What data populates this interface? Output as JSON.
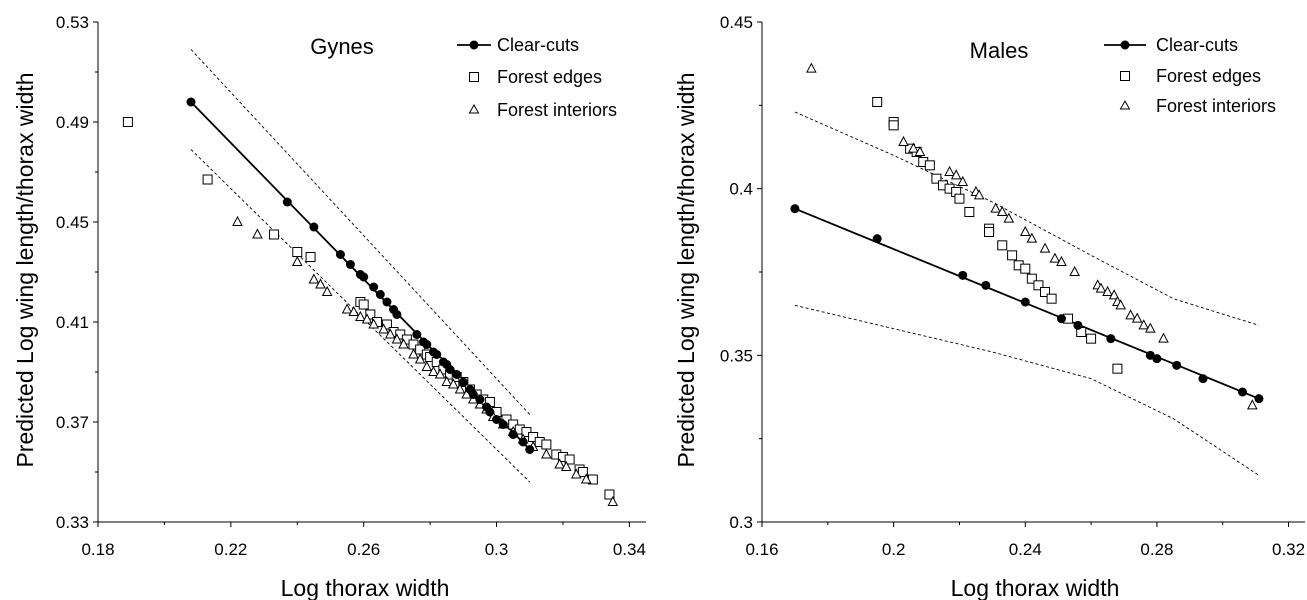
{
  "chart_data": [
    {
      "type": "scatter",
      "title": "Gynes",
      "xlabel": "Log thorax width",
      "ylabel": "Predicted Log wing length/thorax width",
      "xlim": [
        0.18,
        0.345
      ],
      "ylim": [
        0.33,
        0.53
      ],
      "xticks": [
        0.18,
        0.22,
        0.26,
        0.3,
        0.34
      ],
      "yticks": [
        0.33,
        0.37,
        0.41,
        0.45,
        0.49,
        0.53
      ],
      "xtick_labels": [
        "0.18",
        "0.22",
        "0.26",
        "0.3",
        "0.34"
      ],
      "ytick_labels": [
        "0.33",
        "0.37",
        "0.41",
        "0.45",
        "0.49",
        "0.53"
      ],
      "legend_position": "top-right",
      "fit_line": {
        "x": [
          0.208,
          0.31
        ],
        "y": [
          0.498,
          0.359
        ]
      },
      "ci_upper": {
        "x": [
          0.208,
          0.31
        ],
        "y": [
          0.519,
          0.373
        ]
      },
      "ci_lower": {
        "x": [
          0.208,
          0.31
        ],
        "y": [
          0.479,
          0.346
        ]
      },
      "series": [
        {
          "name": "Clear-cuts",
          "marker": "filled-circle-line",
          "x": [
            0.208,
            0.237,
            0.245,
            0.253,
            0.256,
            0.259,
            0.26,
            0.263,
            0.265,
            0.267,
            0.269,
            0.27,
            0.276,
            0.278,
            0.279,
            0.281,
            0.282,
            0.284,
            0.285,
            0.286,
            0.288,
            0.29,
            0.292,
            0.293,
            0.295,
            0.297,
            0.298,
            0.3,
            0.302,
            0.305,
            0.308,
            0.31
          ],
          "y": [
            0.498,
            0.458,
            0.448,
            0.437,
            0.433,
            0.429,
            0.428,
            0.424,
            0.421,
            0.418,
            0.415,
            0.413,
            0.405,
            0.402,
            0.401,
            0.398,
            0.397,
            0.394,
            0.393,
            0.391,
            0.389,
            0.386,
            0.383,
            0.381,
            0.379,
            0.376,
            0.374,
            0.371,
            0.369,
            0.365,
            0.362,
            0.359
          ]
        },
        {
          "name": "Forest edges",
          "marker": "open-square",
          "x": [
            0.189,
            0.213,
            0.233,
            0.24,
            0.244,
            0.259,
            0.26,
            0.262,
            0.264,
            0.267,
            0.269,
            0.271,
            0.273,
            0.275,
            0.277,
            0.279,
            0.28,
            0.282,
            0.284,
            0.286,
            0.288,
            0.29,
            0.292,
            0.294,
            0.296,
            0.298,
            0.3,
            0.303,
            0.305,
            0.307,
            0.309,
            0.311,
            0.313,
            0.315,
            0.318,
            0.32,
            0.322,
            0.325,
            0.326,
            0.329,
            0.334
          ],
          "y": [
            0.49,
            0.467,
            0.445,
            0.438,
            0.436,
            0.418,
            0.417,
            0.413,
            0.41,
            0.409,
            0.406,
            0.405,
            0.403,
            0.401,
            0.399,
            0.397,
            0.396,
            0.394,
            0.391,
            0.389,
            0.388,
            0.386,
            0.383,
            0.381,
            0.379,
            0.378,
            0.374,
            0.371,
            0.369,
            0.367,
            0.366,
            0.364,
            0.362,
            0.361,
            0.357,
            0.356,
            0.355,
            0.351,
            0.35,
            0.347,
            0.341
          ]
        },
        {
          "name": "Forest interiors",
          "marker": "open-triangle",
          "x": [
            0.222,
            0.228,
            0.24,
            0.245,
            0.247,
            0.249,
            0.255,
            0.257,
            0.259,
            0.261,
            0.263,
            0.266,
            0.268,
            0.27,
            0.272,
            0.275,
            0.277,
            0.279,
            0.281,
            0.283,
            0.285,
            0.287,
            0.289,
            0.291,
            0.293,
            0.295,
            0.297,
            0.299,
            0.302,
            0.305,
            0.308,
            0.311,
            0.315,
            0.319,
            0.321,
            0.324,
            0.327,
            0.335
          ],
          "y": [
            0.45,
            0.445,
            0.434,
            0.427,
            0.425,
            0.422,
            0.415,
            0.414,
            0.412,
            0.411,
            0.409,
            0.407,
            0.405,
            0.403,
            0.401,
            0.397,
            0.395,
            0.392,
            0.39,
            0.389,
            0.386,
            0.385,
            0.383,
            0.381,
            0.379,
            0.377,
            0.375,
            0.372,
            0.369,
            0.366,
            0.363,
            0.36,
            0.357,
            0.353,
            0.352,
            0.349,
            0.347,
            0.338
          ]
        }
      ],
      "legend": [
        "Clear-cuts",
        "Forest edges",
        "Forest interiors"
      ]
    },
    {
      "type": "scatter",
      "title": "Males",
      "xlabel": "Log thorax width",
      "ylabel": "Predicted Log wing length/thorax width",
      "xlim": [
        0.16,
        0.325
      ],
      "ylim": [
        0.3,
        0.45
      ],
      "xticks": [
        0.16,
        0.2,
        0.24,
        0.28,
        0.32
      ],
      "yticks": [
        0.3,
        0.35,
        0.4,
        0.45
      ],
      "xtick_labels": [
        "0.16",
        "0.2",
        "0.24",
        "0.28",
        "0.32"
      ],
      "ytick_labels": [
        "0.3",
        "0.35",
        "0.4",
        "0.45"
      ],
      "legend_position": "top-right",
      "fit_line": {
        "x": [
          0.17,
          0.311
        ],
        "y": [
          0.394,
          0.337
        ]
      },
      "ci_upper": {
        "x": [
          0.17,
          0.2,
          0.23,
          0.26,
          0.285,
          0.311
        ],
        "y": [
          0.423,
          0.41,
          0.396,
          0.38,
          0.367,
          0.359
        ]
      },
      "ci_lower": {
        "x": [
          0.17,
          0.2,
          0.23,
          0.26,
          0.285,
          0.311
        ],
        "y": [
          0.365,
          0.358,
          0.351,
          0.343,
          0.331,
          0.314
        ]
      },
      "series": [
        {
          "name": "Clear-cuts",
          "marker": "filled-circle-line",
          "x": [
            0.17,
            0.195,
            0.221,
            0.228,
            0.24,
            0.251,
            0.256,
            0.266,
            0.278,
            0.28,
            0.286,
            0.294,
            0.306,
            0.311
          ],
          "y": [
            0.394,
            0.385,
            0.374,
            0.371,
            0.366,
            0.361,
            0.359,
            0.355,
            0.35,
            0.349,
            0.347,
            0.343,
            0.339,
            0.337
          ]
        },
        {
          "name": "Forest edges",
          "marker": "open-square",
          "x": [
            0.195,
            0.2,
            0.2,
            0.205,
            0.207,
            0.209,
            0.211,
            0.213,
            0.215,
            0.217,
            0.219,
            0.22,
            0.223,
            0.229,
            0.229,
            0.233,
            0.236,
            0.238,
            0.24,
            0.242,
            0.244,
            0.246,
            0.248,
            0.253,
            0.257,
            0.26,
            0.268
          ],
          "y": [
            0.426,
            0.42,
            0.419,
            0.412,
            0.411,
            0.408,
            0.407,
            0.403,
            0.401,
            0.4,
            0.399,
            0.397,
            0.393,
            0.388,
            0.387,
            0.383,
            0.38,
            0.377,
            0.376,
            0.373,
            0.371,
            0.369,
            0.367,
            0.361,
            0.357,
            0.355,
            0.346
          ]
        },
        {
          "name": "Forest interiors",
          "marker": "open-triangle",
          "x": [
            0.175,
            0.203,
            0.206,
            0.208,
            0.217,
            0.219,
            0.221,
            0.225,
            0.226,
            0.231,
            0.233,
            0.235,
            0.24,
            0.242,
            0.246,
            0.249,
            0.251,
            0.255,
            0.262,
            0.263,
            0.265,
            0.267,
            0.268,
            0.269,
            0.272,
            0.274,
            0.276,
            0.278,
            0.282,
            0.309
          ],
          "y": [
            0.436,
            0.414,
            0.412,
            0.411,
            0.405,
            0.404,
            0.402,
            0.399,
            0.398,
            0.394,
            0.393,
            0.391,
            0.387,
            0.385,
            0.382,
            0.379,
            0.378,
            0.375,
            0.371,
            0.37,
            0.369,
            0.368,
            0.366,
            0.365,
            0.362,
            0.361,
            0.359,
            0.358,
            0.355,
            0.335
          ]
        }
      ],
      "legend": [
        "Clear-cuts",
        "Forest edges",
        "Forest interiors"
      ]
    }
  ]
}
